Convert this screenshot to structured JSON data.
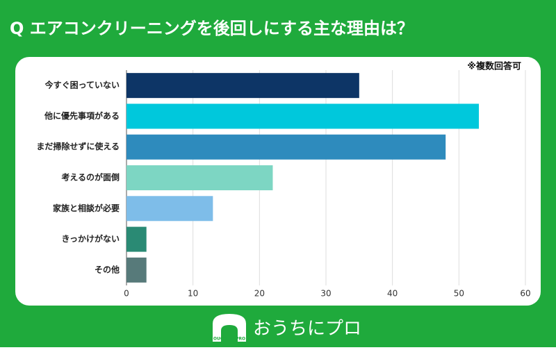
{
  "chart_data": {
    "type": "barh",
    "title": "Q エアコンクリーニングを後回しにする主な理由は？",
    "note": "※複数回答可",
    "categories": [
      "今すぐ困っていない",
      "他に優先事項がある",
      "まだ掃除せずに使える",
      "考えるのが面倒",
      "家族と相談が必要",
      "きっかけがない",
      "その他"
    ],
    "values": [
      35,
      53,
      48,
      22,
      13,
      3,
      3
    ],
    "colors": [
      "#0d3566",
      "#00c8dc",
      "#2e8bbd",
      "#7dd6c3",
      "#7ebde9",
      "#2a8a74",
      "#577a7a"
    ],
    "xlim": [
      0,
      60
    ],
    "xticks": [
      0,
      10,
      20,
      30,
      40,
      50,
      60
    ],
    "grid": true
  },
  "brand": {
    "name": "おうちにプロ",
    "icon_text": "OUCHI ni PRO"
  }
}
